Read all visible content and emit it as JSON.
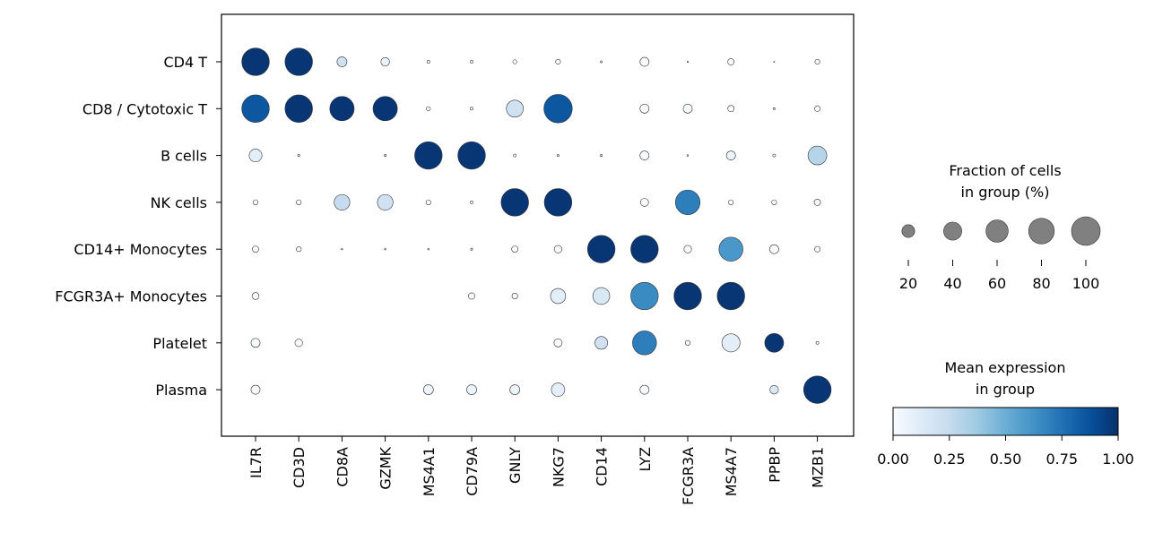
{
  "chart_data": {
    "type": "dotplot",
    "genes": [
      "IL7R",
      "CD3D",
      "CD8A",
      "GZMK",
      "MS4A1",
      "CD79A",
      "GNLY",
      "NKG7",
      "CD14",
      "LYZ",
      "FCGR3A",
      "MS4A7",
      "PPBP",
      "MZB1"
    ],
    "groups": [
      "CD4 T",
      "CD8 / Cytotoxic T",
      "B cells",
      "NK cells",
      "CD14+ Monocytes",
      "FCGR3A+ Monocytes",
      "Platelet",
      "Plasma"
    ],
    "fraction": [
      [
        92,
        92,
        12,
        9,
        1,
        1,
        2,
        3,
        0.5,
        10,
        0.3,
        5,
        0.1,
        3
      ],
      [
        92,
        92,
        72,
        72,
        2,
        1,
        35,
        98,
        null,
        10,
        10,
        5,
        0.5,
        4
      ],
      [
        20,
        0.5,
        null,
        0.5,
        92,
        92,
        1,
        0.5,
        0.5,
        10,
        0.3,
        10,
        1,
        43
      ],
      [
        3,
        3,
        30,
        30,
        3,
        1,
        92,
        92,
        null,
        8,
        74,
        3,
        3,
        5
      ],
      [
        5,
        3,
        0.3,
        0.3,
        0.3,
        0.5,
        5,
        7,
        92,
        92,
        7,
        70,
        10,
        4
      ],
      [
        6,
        null,
        null,
        null,
        null,
        5,
        4,
        28,
        35,
        92,
        92,
        92,
        null,
        null
      ],
      [
        10,
        7,
        null,
        null,
        null,
        null,
        null,
        8,
        20,
        70,
        3,
        40,
        43,
        1
      ],
      [
        10,
        null,
        null,
        null,
        12,
        12,
        12,
        22,
        null,
        10,
        null,
        null,
        9,
        92
      ]
    ],
    "mean_expression": [
      [
        0.98,
        0.98,
        0.2,
        0.05,
        0,
        0,
        0,
        0,
        0,
        0,
        0,
        0,
        0,
        0
      ],
      [
        0.85,
        0.98,
        0.98,
        0.98,
        0,
        0,
        0.2,
        0.85,
        null,
        0,
        0,
        0,
        0,
        0
      ],
      [
        0.1,
        0,
        null,
        0,
        0.98,
        0.98,
        0,
        0,
        0,
        0,
        0,
        0.05,
        0,
        0.3
      ],
      [
        0,
        0,
        0.25,
        0.2,
        0,
        0,
        0.98,
        0.98,
        null,
        0,
        0.7,
        0,
        0,
        0
      ],
      [
        0,
        0,
        0,
        0,
        0,
        0,
        0,
        0,
        0.98,
        0.98,
        0,
        0.6,
        0,
        0
      ],
      [
        0,
        null,
        null,
        null,
        null,
        0,
        0,
        0.1,
        0.15,
        0.65,
        0.98,
        0.98,
        null,
        null
      ],
      [
        0,
        0,
        null,
        null,
        null,
        null,
        null,
        0,
        0.2,
        0.7,
        0,
        0.1,
        0.98,
        0
      ],
      [
        0,
        null,
        null,
        null,
        0.05,
        0.05,
        0.05,
        0.1,
        null,
        0,
        null,
        null,
        0.15,
        0.98
      ]
    ],
    "size_legend": {
      "title_line1": "Fraction of cells",
      "title_line2": "in group (%)",
      "values": [
        20,
        40,
        60,
        80,
        100
      ],
      "labels": [
        "20",
        "40",
        "60",
        "80",
        "100"
      ]
    },
    "color_legend": {
      "title_line1": "Mean expression",
      "title_line2": "in group",
      "range": [
        0,
        1
      ],
      "ticks": [
        "0.00",
        "0.25",
        "0.50",
        "0.75",
        "1.00"
      ],
      "colormap": "Blues"
    }
  }
}
